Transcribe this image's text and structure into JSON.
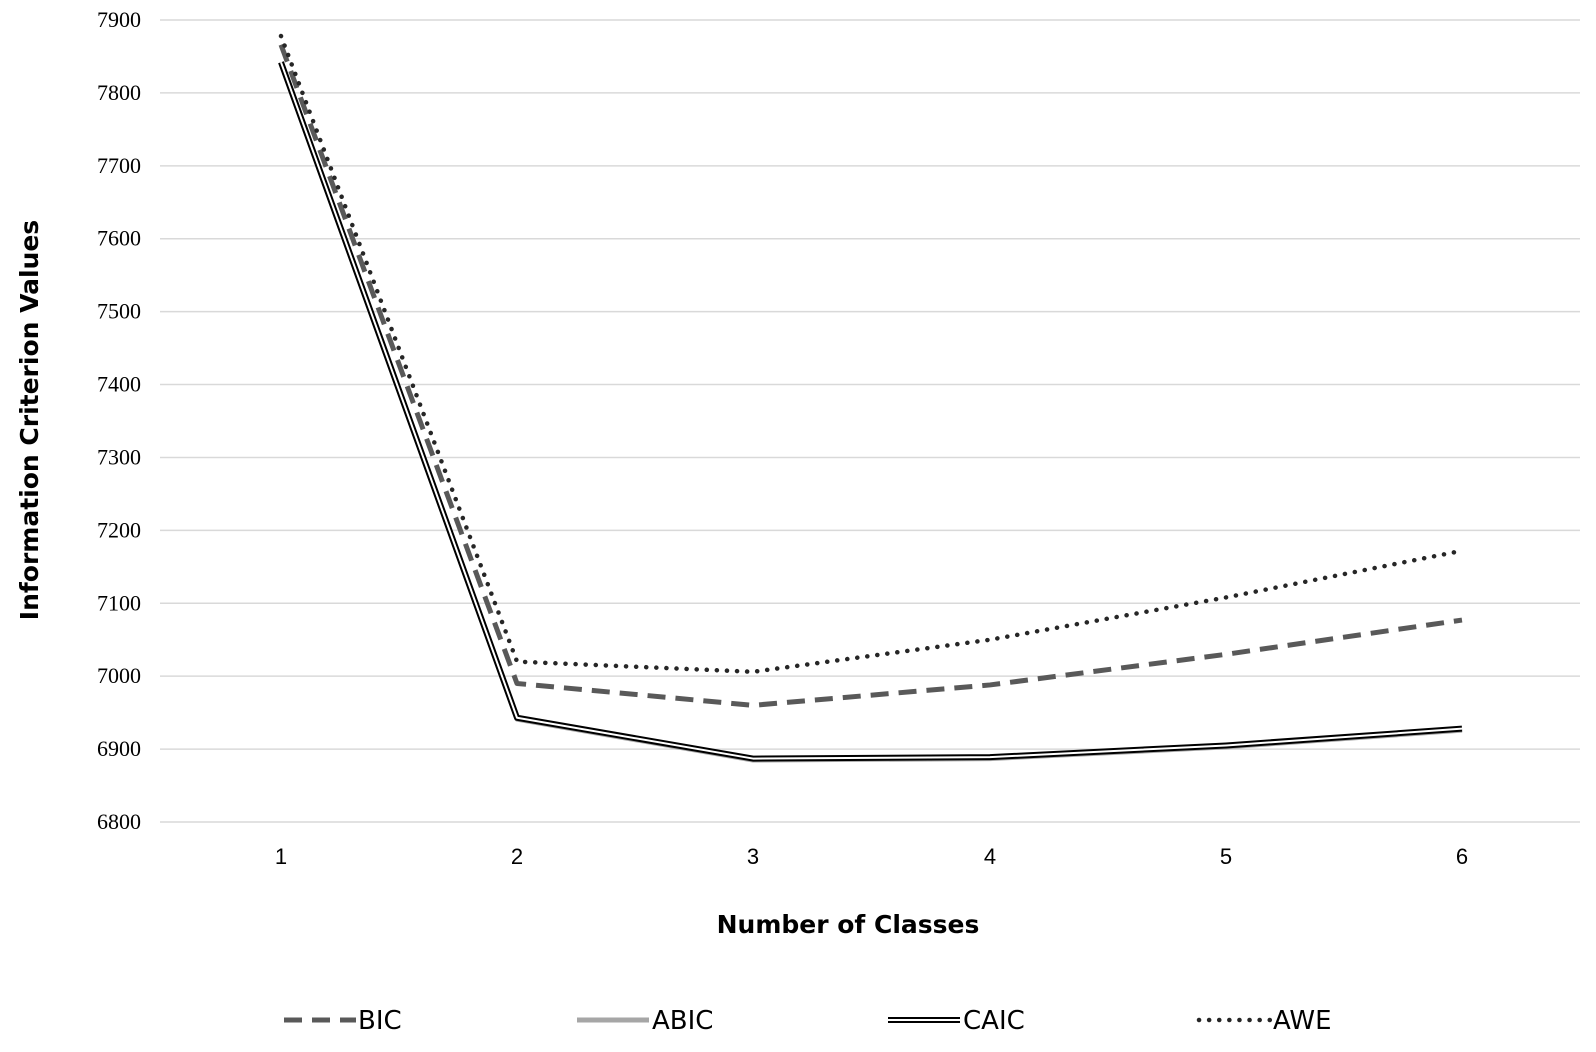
{
  "chart_data": {
    "type": "line",
    "title": "",
    "xlabel": "Number of Classes",
    "ylabel": "Information Criterion Values",
    "categories": [
      "1",
      "2",
      "3",
      "4",
      "5",
      "6"
    ],
    "ylim": [
      6800,
      7900
    ],
    "yticks": [
      6800,
      6900,
      7000,
      7100,
      7200,
      7300,
      7400,
      7500,
      7600,
      7700,
      7800,
      7900
    ],
    "grid": true,
    "legend_position": "bottom",
    "series": [
      {
        "name": "BIC",
        "values": [
          7866,
          6990,
          6960,
          6988,
          7030,
          7077
        ],
        "color": "#595959",
        "style": "dashed"
      },
      {
        "name": "ABIC",
        "values": [
          7840,
          6941,
          6885,
          6887,
          6903,
          6926
        ],
        "color": "#a6a6a6",
        "style": "solid"
      },
      {
        "name": "CAIC",
        "values": [
          7842,
          6943,
          6887,
          6889,
          6905,
          6928
        ],
        "color": "#000000",
        "style": "double"
      },
      {
        "name": "AWE",
        "values": [
          7878,
          7020,
          7006,
          7050,
          7108,
          7172
        ],
        "color": "#262626",
        "style": "dotted"
      }
    ]
  }
}
